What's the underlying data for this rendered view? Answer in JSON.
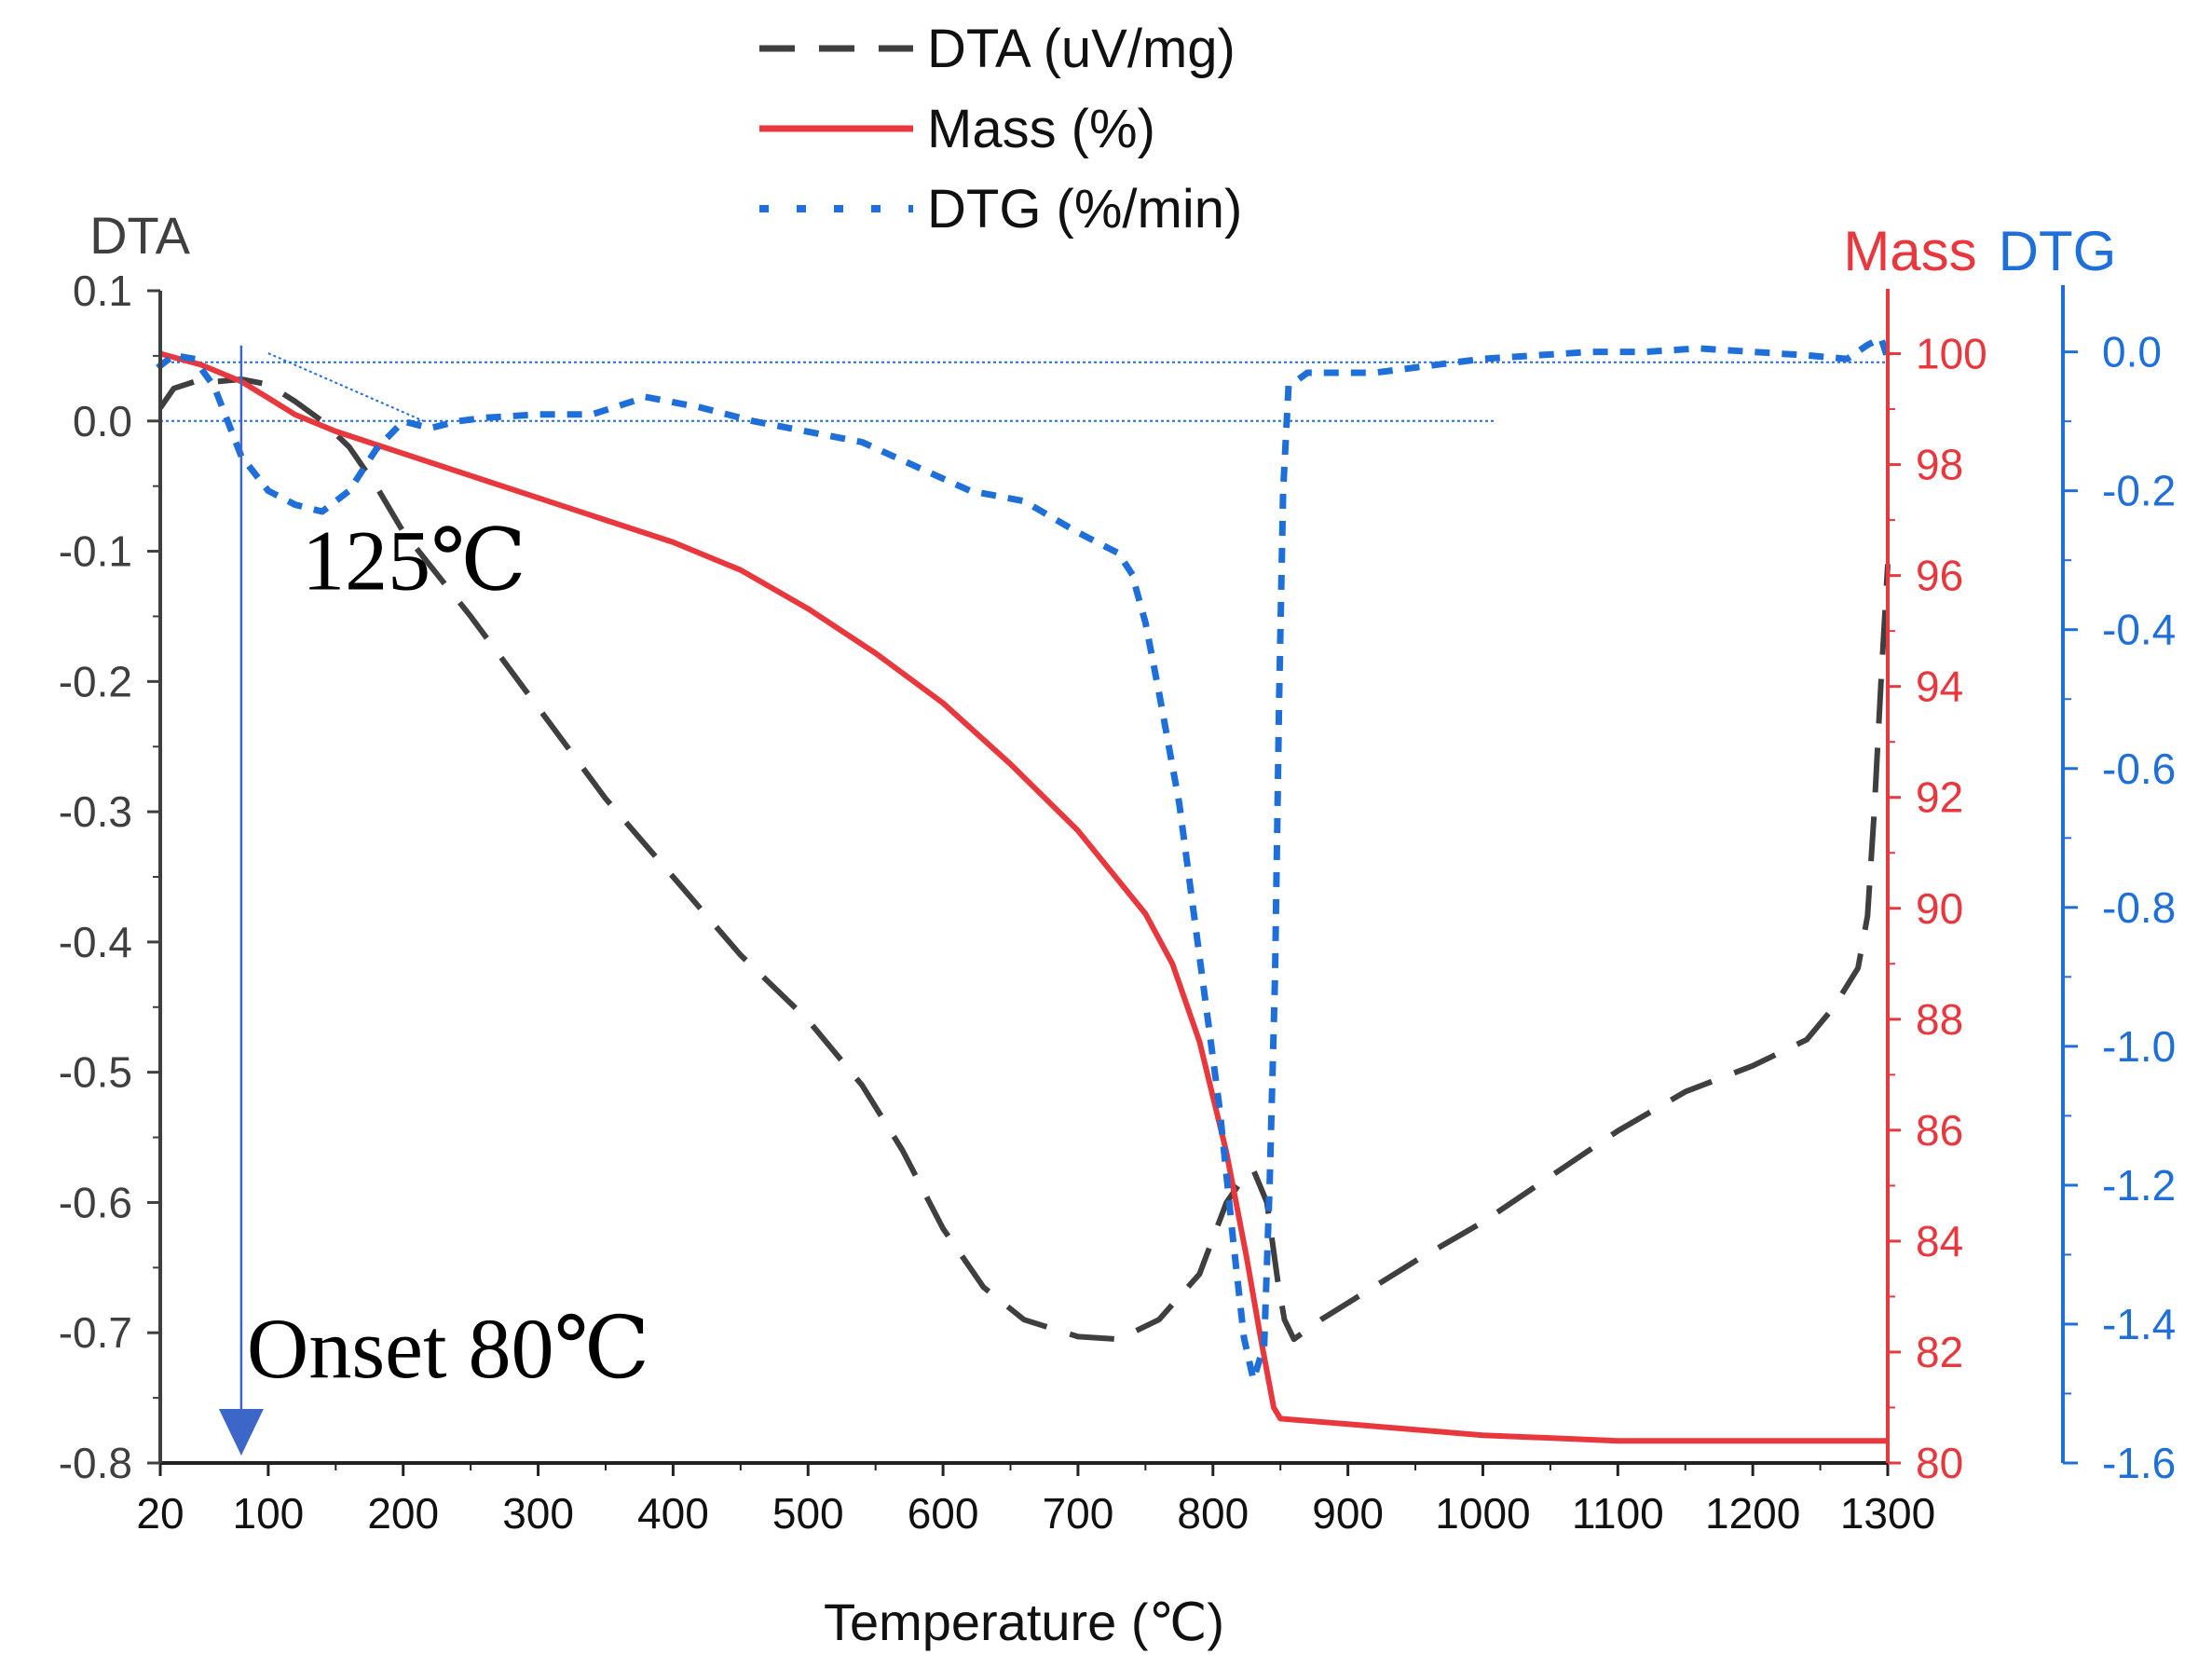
{
  "chart_data": {
    "type": "line",
    "xlabel": "Temperature (℃)",
    "xlim": [
      20,
      1300
    ],
    "xticks": [
      20,
      100,
      200,
      300,
      400,
      500,
      600,
      700,
      800,
      900,
      1000,
      1100,
      1200,
      1300
    ],
    "axes": {
      "dta": {
        "title": "DTA",
        "color": "#3f3f3f",
        "ylim": [
          -0.8,
          0.1
        ],
        "ticks": [
          0.1,
          0.0,
          -0.1,
          -0.2,
          -0.3,
          -0.4,
          -0.5,
          -0.6,
          -0.7,
          -0.8
        ],
        "tick_labels": [
          "0.1",
          "0.0",
          "-0.1",
          "-0.2",
          "-0.3",
          "-0.4",
          "-0.5",
          "-0.6",
          "-0.7",
          "-0.8"
        ]
      },
      "mass": {
        "title": "Mass",
        "color": "#e8383d",
        "ylim": [
          80,
          101
        ],
        "ticks": [
          100,
          98,
          96,
          94,
          92,
          90,
          88,
          86,
          84,
          82,
          80
        ],
        "tick_labels": [
          "100",
          "98",
          "96",
          "94",
          "92",
          "90",
          "88",
          "86",
          "84",
          "82",
          "80"
        ]
      },
      "dtg": {
        "title": "DTG",
        "color": "#1f6fdb",
        "ylim": [
          -1.6,
          0.08
        ],
        "ticks": [
          0.0,
          -0.2,
          -0.4,
          -0.6,
          -0.8,
          -1.0,
          -1.2,
          -1.4,
          -1.6
        ],
        "tick_labels": [
          "0.0",
          "-0.2",
          "-0.4",
          "-0.6",
          "-0.8",
          "-1.0",
          "-1.2",
          "-1.4",
          "-1.6"
        ]
      }
    },
    "series": [
      {
        "name": "DTA (uV/mg)",
        "axis": "dta",
        "color": "#3f3f3f",
        "style": "dashed",
        "points": [
          [
            20,
            0.01
          ],
          [
            30,
            0.025
          ],
          [
            45,
            0.03
          ],
          [
            60,
            0.03
          ],
          [
            80,
            0.032
          ],
          [
            100,
            0.028
          ],
          [
            120,
            0.015
          ],
          [
            140,
            0.0
          ],
          [
            160,
            -0.02
          ],
          [
            180,
            -0.05
          ],
          [
            200,
            -0.085
          ],
          [
            250,
            -0.15
          ],
          [
            300,
            -0.22
          ],
          [
            350,
            -0.29
          ],
          [
            400,
            -0.35
          ],
          [
            450,
            -0.41
          ],
          [
            500,
            -0.46
          ],
          [
            540,
            -0.51
          ],
          [
            570,
            -0.56
          ],
          [
            600,
            -0.62
          ],
          [
            630,
            -0.665
          ],
          [
            660,
            -0.69
          ],
          [
            700,
            -0.703
          ],
          [
            730,
            -0.705
          ],
          [
            760,
            -0.69
          ],
          [
            790,
            -0.655
          ],
          [
            810,
            -0.6
          ],
          [
            820,
            -0.585
          ],
          [
            830,
            -0.575
          ],
          [
            840,
            -0.6
          ],
          [
            848,
            -0.66
          ],
          [
            853,
            -0.69
          ],
          [
            860,
            -0.705
          ],
          [
            880,
            -0.69
          ],
          [
            950,
            -0.645
          ],
          [
            1000,
            -0.615
          ],
          [
            1050,
            -0.58
          ],
          [
            1100,
            -0.545
          ],
          [
            1150,
            -0.515
          ],
          [
            1200,
            -0.495
          ],
          [
            1240,
            -0.475
          ],
          [
            1260,
            -0.45
          ],
          [
            1278,
            -0.42
          ],
          [
            1285,
            -0.38
          ],
          [
            1290,
            -0.3
          ],
          [
            1295,
            -0.2
          ],
          [
            1300,
            -0.11
          ]
        ]
      },
      {
        "name": "Mass (%)",
        "axis": "mass",
        "color": "#e8383d",
        "style": "solid",
        "points": [
          [
            20,
            100.0
          ],
          [
            50,
            99.8
          ],
          [
            80,
            99.5
          ],
          [
            100,
            99.2
          ],
          [
            120,
            98.9
          ],
          [
            150,
            98.6
          ],
          [
            200,
            98.2
          ],
          [
            300,
            97.4
          ],
          [
            400,
            96.6
          ],
          [
            450,
            96.1
          ],
          [
            500,
            95.4
          ],
          [
            550,
            94.6
          ],
          [
            600,
            93.7
          ],
          [
            650,
            92.6
          ],
          [
            700,
            91.4
          ],
          [
            730,
            90.5
          ],
          [
            750,
            89.9
          ],
          [
            770,
            89.0
          ],
          [
            790,
            87.6
          ],
          [
            810,
            85.6
          ],
          [
            825,
            83.7
          ],
          [
            835,
            82.3
          ],
          [
            845,
            81.0
          ],
          [
            850,
            80.8
          ],
          [
            900,
            80.7
          ],
          [
            1000,
            80.5
          ],
          [
            1100,
            80.4
          ],
          [
            1200,
            80.4
          ],
          [
            1300,
            80.4
          ]
        ]
      },
      {
        "name": "DTG (%/min)",
        "axis": "dtg",
        "color": "#1f6fdb",
        "style": "dotted",
        "points": [
          [
            20,
            -0.02
          ],
          [
            30,
            -0.005
          ],
          [
            45,
            -0.01
          ],
          [
            60,
            -0.05
          ],
          [
            80,
            -0.15
          ],
          [
            100,
            -0.2
          ],
          [
            120,
            -0.22
          ],
          [
            140,
            -0.23
          ],
          [
            160,
            -0.2
          ],
          [
            180,
            -0.14
          ],
          [
            200,
            -0.1
          ],
          [
            220,
            -0.11
          ],
          [
            240,
            -0.1
          ],
          [
            260,
            -0.095
          ],
          [
            300,
            -0.09
          ],
          [
            340,
            -0.09
          ],
          [
            380,
            -0.065
          ],
          [
            420,
            -0.08
          ],
          [
            460,
            -0.1
          ],
          [
            500,
            -0.115
          ],
          [
            540,
            -0.13
          ],
          [
            580,
            -0.165
          ],
          [
            620,
            -0.2
          ],
          [
            660,
            -0.215
          ],
          [
            700,
            -0.26
          ],
          [
            730,
            -0.29
          ],
          [
            740,
            -0.32
          ],
          [
            750,
            -0.39
          ],
          [
            760,
            -0.49
          ],
          [
            775,
            -0.65
          ],
          [
            790,
            -0.87
          ],
          [
            805,
            -1.09
          ],
          [
            815,
            -1.28
          ],
          [
            823,
            -1.42
          ],
          [
            830,
            -1.48
          ],
          [
            838,
            -1.43
          ],
          [
            842,
            -1.2
          ],
          [
            846,
            -0.9
          ],
          [
            849,
            -0.5
          ],
          [
            852,
            -0.2
          ],
          [
            856,
            -0.05
          ],
          [
            870,
            -0.03
          ],
          [
            920,
            -0.03
          ],
          [
            960,
            -0.02
          ],
          [
            1000,
            -0.01
          ],
          [
            1040,
            -0.005
          ],
          [
            1080,
            0.0
          ],
          [
            1120,
            0.0
          ],
          [
            1160,
            0.005
          ],
          [
            1200,
            0.0
          ],
          [
            1240,
            -0.005
          ],
          [
            1270,
            -0.01
          ],
          [
            1285,
            0.01
          ],
          [
            1295,
            0.02
          ],
          [
            1300,
            -0.01
          ]
        ]
      }
    ],
    "reference_lines": [
      {
        "name": "DTG baseline",
        "axis": "dtg",
        "value": -0.015,
        "x_from": 20,
        "x_to": 1300,
        "color": "#1f6fdb"
      },
      {
        "name": "DTA baseline",
        "axis": "dta",
        "value": 0.0,
        "x_from": 20,
        "x_to": 1010,
        "color": "#1f6fdb"
      },
      {
        "name": "onset tangent",
        "axis": "dta",
        "from": [
          100,
          0.052
        ],
        "to": [
          215,
          0.0
        ],
        "color": "#1f6fdb"
      }
    ],
    "annotations": [
      {
        "name": "peak-125",
        "text": "125℃",
        "x": 125,
        "axis": "dta",
        "y": -0.115
      },
      {
        "name": "onset-80",
        "text": "Onset 80℃",
        "x": 80,
        "axis": "dta",
        "y": -0.72
      }
    ],
    "onset_marker": {
      "x": 80,
      "color": "#3c67c8"
    },
    "legend": {
      "placement": "top-center",
      "entries": [
        {
          "label": "DTA (uV/mg)",
          "style": "dashed",
          "color": "#3f3f3f"
        },
        {
          "label": "Mass (%)",
          "style": "solid",
          "color": "#e8383d"
        },
        {
          "label": "DTG (%/min)",
          "style": "dotted",
          "color": "#1f6fdb"
        }
      ]
    }
  }
}
